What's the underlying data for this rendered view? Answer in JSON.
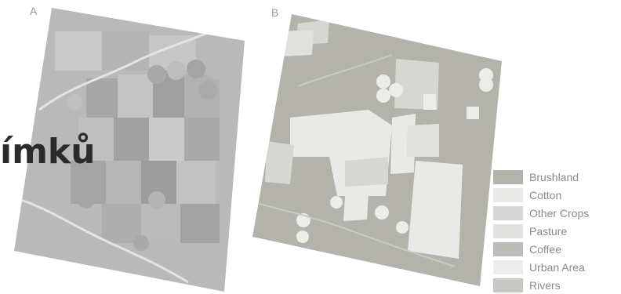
{
  "panels": {
    "a_label": "A",
    "b_label": "B"
  },
  "overlay_text": "ímků",
  "legend": {
    "items": [
      {
        "label": "Brushland",
        "color": "#b3b3ac"
      },
      {
        "label": "Cotton",
        "color": "#e9e9e7"
      },
      {
        "label": "Other Crops",
        "color": "#d6d6d3"
      },
      {
        "label": "Pasture",
        "color": "#e0e0de"
      },
      {
        "label": "Coffee",
        "color": "#bdbdb7"
      },
      {
        "label": "Urban Area",
        "color": "#ececea"
      },
      {
        "label": "Rivers",
        "color": "#c8c8c4"
      }
    ]
  },
  "colors": {
    "brushland": "#b3b3ac",
    "cotton": "#e9e9e7",
    "other_crops": "#d6d6d3",
    "pasture": "#e0e0de",
    "coffee": "#bdbdb7",
    "urban_area": "#ececea",
    "rivers": "#c8c8c4"
  }
}
